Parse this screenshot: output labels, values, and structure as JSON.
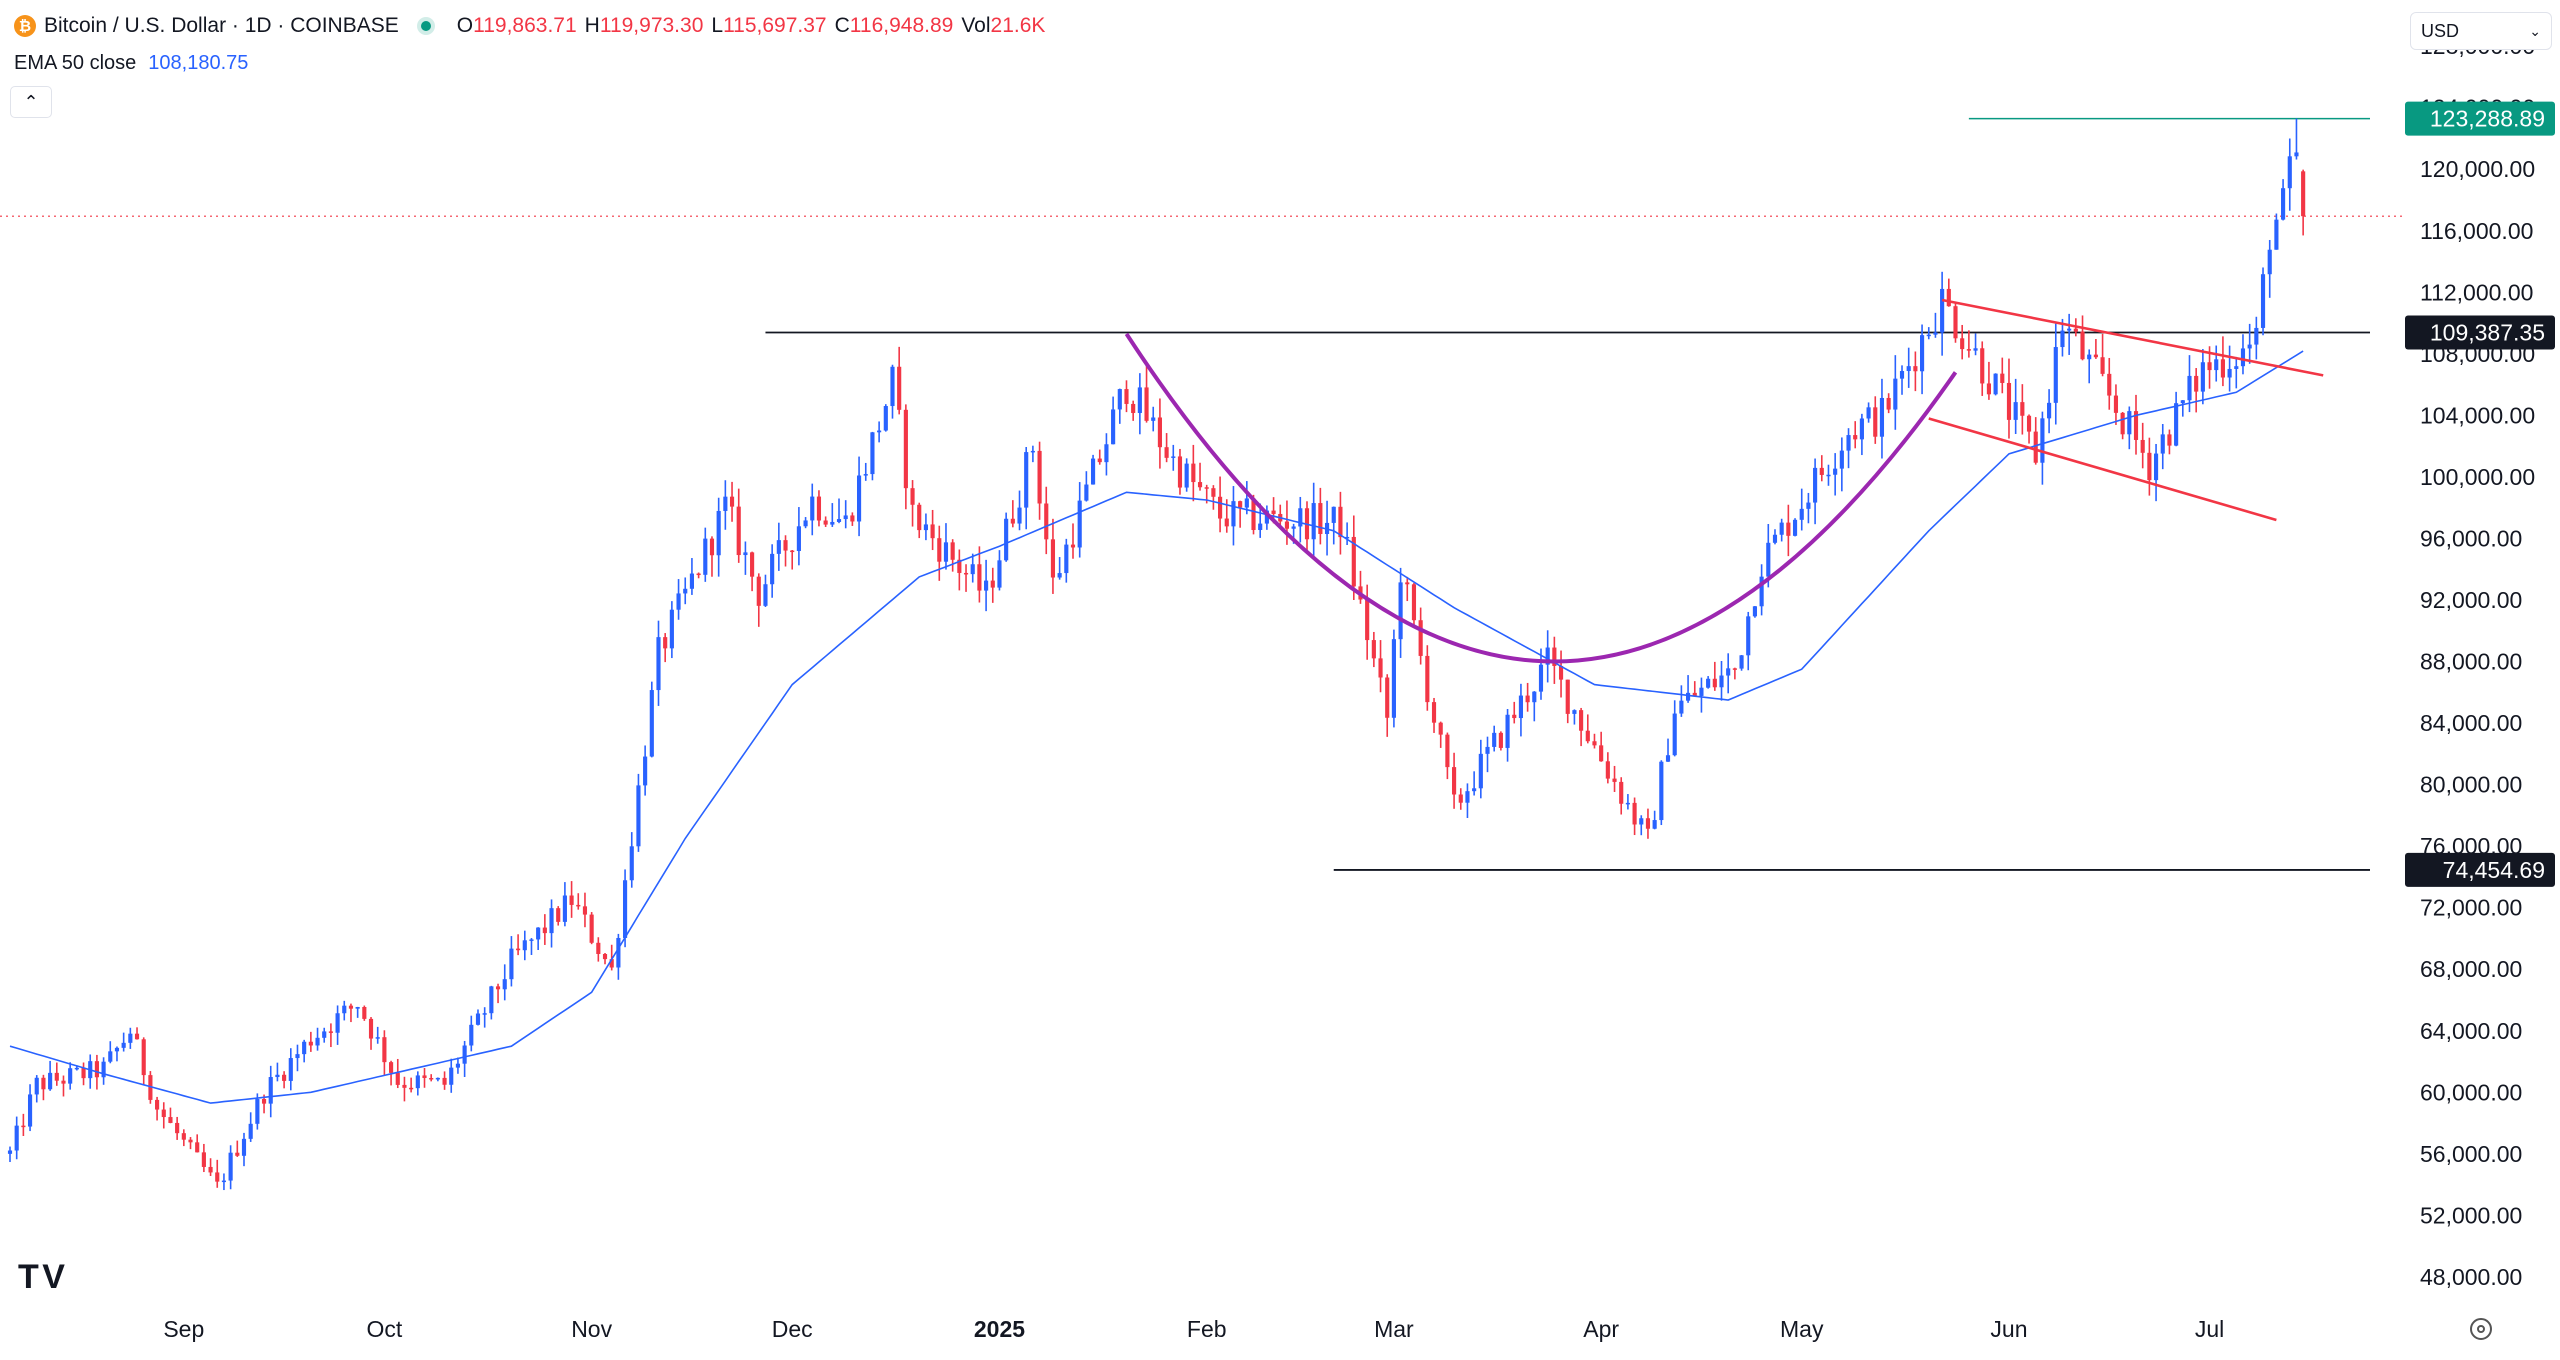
{
  "header": {
    "symbol": "Bitcoin / U.S. Dollar · 1D · COINBASE",
    "coin_glyph": "₿",
    "open_label": "O",
    "open": "119,863.71",
    "high_label": "H",
    "high": "119,973.30",
    "low_label": "L",
    "low": "115,697.37",
    "close_label": "C",
    "close": "116,948.89",
    "vol_label": "Vol",
    "vol": "21.6K"
  },
  "ema": {
    "label": "EMA 50 close",
    "value": "108,180.75"
  },
  "currency_selector": "USD",
  "colors": {
    "up": "#2962ff",
    "down": "#f23645",
    "ema": "#2962ff",
    "cup": "#9c27b0",
    "channel": "#f23645",
    "badge_green": "#089981",
    "badge_black": "#131722"
  },
  "chart_data": {
    "type": "candlestick",
    "y_axis": {
      "range": [
        46500,
        131000
      ],
      "ticks": [
        48000,
        52000,
        56000,
        60000,
        64000,
        68000,
        72000,
        76000,
        80000,
        84000,
        88000,
        92000,
        96000,
        100000,
        104000,
        108000,
        112000,
        116000,
        120000,
        124000,
        128000
      ],
      "tick_labels": [
        "48,000.00",
        "52,000.00",
        "56,000.00",
        "60,000.00",
        "64,000.00",
        "68,000.00",
        "72,000.00",
        "76,000.00",
        "80,000.00",
        "84,000.00",
        "88,000.00",
        "92,000.00",
        "96,000.00",
        "100,000.00",
        "104,000.00",
        "108,000.00",
        "112,000.00",
        "116,000.00",
        "120,000.00",
        "124,000.00",
        "128,000.00"
      ]
    },
    "x_axis": {
      "range": [
        "2024-08-06",
        "2025-07-25"
      ],
      "labels": [
        {
          "date": "2024-09-01",
          "text": "Sep"
        },
        {
          "date": "2024-10-01",
          "text": "Oct"
        },
        {
          "date": "2024-11-01",
          "text": "Nov"
        },
        {
          "date": "2024-12-01",
          "text": "Dec"
        },
        {
          "date": "2025-01-01",
          "text": "2025",
          "bold": true
        },
        {
          "date": "2025-02-01",
          "text": "Feb"
        },
        {
          "date": "2025-03-01",
          "text": "Mar"
        },
        {
          "date": "2025-04-01",
          "text": "Apr"
        },
        {
          "date": "2025-05-01",
          "text": "May"
        },
        {
          "date": "2025-06-01",
          "text": "Jun"
        },
        {
          "date": "2025-07-01",
          "text": "Jul"
        }
      ]
    },
    "price_key_points": [
      [
        "2024-08-06",
        56000
      ],
      [
        "2024-08-10",
        60500
      ],
      [
        "2024-08-20",
        61500
      ],
      [
        "2024-08-24",
        64000
      ],
      [
        "2024-08-28",
        59000
      ],
      [
        "2024-09-06",
        53800
      ],
      [
        "2024-09-13",
        60000
      ],
      [
        "2024-09-20",
        63500
      ],
      [
        "2024-09-27",
        65800
      ],
      [
        "2024-10-03",
        60700
      ],
      [
        "2024-10-10",
        60500
      ],
      [
        "2024-10-20",
        68500
      ],
      [
        "2024-10-29",
        72500
      ],
      [
        "2024-11-04",
        67900
      ],
      [
        "2024-11-11",
        88500
      ],
      [
        "2024-11-21",
        98000
      ],
      [
        "2024-11-26",
        92500
      ],
      [
        "2024-12-04",
        98500
      ],
      [
        "2024-12-09",
        97000
      ],
      [
        "2024-12-16",
        106100
      ],
      [
        "2024-12-19",
        97500
      ],
      [
        "2024-12-30",
        92300
      ],
      [
        "2025-01-06",
        102000
      ],
      [
        "2025-01-09",
        93000
      ],
      [
        "2025-01-20",
        106000
      ],
      [
        "2025-01-27",
        101000
      ],
      [
        "2025-02-03",
        97500
      ],
      [
        "2025-02-21",
        97000
      ],
      [
        "2025-02-28",
        84300
      ],
      [
        "2025-03-02",
        94000
      ],
      [
        "2025-03-10",
        78500
      ],
      [
        "2025-03-24",
        88000
      ],
      [
        "2025-03-31",
        82500
      ],
      [
        "2025-04-08",
        76300
      ],
      [
        "2025-04-12",
        85000
      ],
      [
        "2025-04-21",
        87500
      ],
      [
        "2025-04-25",
        94500
      ],
      [
        "2025-05-08",
        103000
      ],
      [
        "2025-05-13",
        104000
      ],
      [
        "2025-05-22",
        111500
      ],
      [
        "2025-06-05",
        101500
      ],
      [
        "2025-06-09",
        110000
      ],
      [
        "2025-06-17",
        104500
      ],
      [
        "2025-06-22",
        100900
      ],
      [
        "2025-06-30",
        107000
      ],
      [
        "2025-07-06",
        108200
      ],
      [
        "2025-07-08",
        108900
      ],
      [
        "2025-07-10",
        115900
      ],
      [
        "2025-07-12",
        117500
      ],
      [
        "2025-07-13",
        119800
      ],
      [
        "2025-07-14",
        119850
      ],
      [
        "2025-07-15",
        116900
      ]
    ],
    "ema_key_points": [
      [
        "2024-08-06",
        63000
      ],
      [
        "2024-08-20",
        61200
      ],
      [
        "2024-09-05",
        59300
      ],
      [
        "2024-09-20",
        60000
      ],
      [
        "2024-10-05",
        61500
      ],
      [
        "2024-10-20",
        63000
      ],
      [
        "2024-11-01",
        66500
      ],
      [
        "2024-11-15",
        76500
      ],
      [
        "2024-12-01",
        86500
      ],
      [
        "2024-12-20",
        93500
      ],
      [
        "2025-01-01",
        95500
      ],
      [
        "2025-01-20",
        99000
      ],
      [
        "2025-02-01",
        98500
      ],
      [
        "2025-02-20",
        96500
      ],
      [
        "2025-03-10",
        91500
      ],
      [
        "2025-03-31",
        86500
      ],
      [
        "2025-04-20",
        85500
      ],
      [
        "2025-05-01",
        87500
      ],
      [
        "2025-05-20",
        96500
      ],
      [
        "2025-06-01",
        101500
      ],
      [
        "2025-06-20",
        104000
      ],
      [
        "2025-07-05",
        105500
      ],
      [
        "2025-07-15",
        108180
      ]
    ],
    "price_series_name": "Bitcoin / U.S. Dollar",
    "ema_series_name": "EMA 50 close",
    "annotations": {
      "resistance": {
        "value": 109387.35,
        "label": "109,387.35",
        "from": "2024-11-27",
        "to": "2025-07-25"
      },
      "support": {
        "value": 74454.69,
        "label": "74,454.69",
        "from": "2025-02-20",
        "to": "2025-07-25"
      },
      "high_line": {
        "value": 123288.89,
        "label": "123,288.89",
        "from": "2025-05-26",
        "to": "2025-07-25"
      },
      "last_price": 116948.89,
      "cup": [
        [
          "2025-01-20",
          109300
        ],
        [
          "2025-03-23",
          68000
        ],
        [
          "2025-05-24",
          106800
        ]
      ],
      "channel_upper": [
        [
          "2025-05-22",
          111500
        ],
        [
          "2025-07-18",
          106600
        ]
      ],
      "channel_lower": [
        [
          "2025-05-20",
          103800
        ],
        [
          "2025-07-11",
          97200
        ]
      ]
    }
  }
}
